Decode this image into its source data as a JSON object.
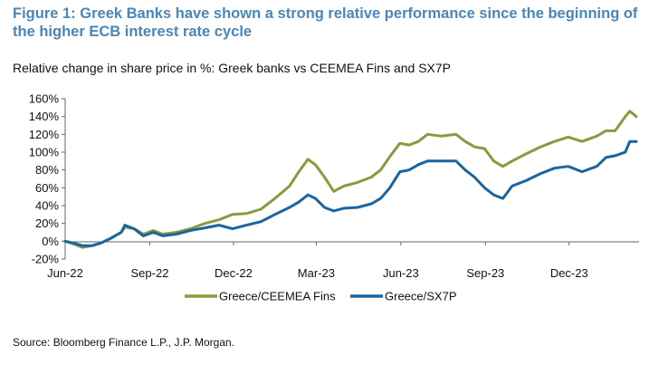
{
  "title": "Figure 1: Greek Banks have shown a strong relative performance since the beginning of the higher ECB interest rate cycle",
  "subtitle": "Relative change in share price in %: Greek banks vs CEEMEA Fins and SX7P",
  "source": "Source: Bloomberg Finance L.P., J.P. Morgan.",
  "chart_data": {
    "type": "line",
    "yticks": [
      "160%",
      "140%",
      "120%",
      "100%",
      "80%",
      "60%",
      "40%",
      "20%",
      "0%",
      "-20%"
    ],
    "ylim": [
      -20,
      160
    ],
    "xticks": [
      "Jun-22",
      "Sep-22",
      "Dec-22",
      "Mar-23",
      "Jun-23",
      "Sep-23",
      "Dec-23"
    ],
    "xlim": [
      "2022-06-01",
      "2024-02-15"
    ],
    "grid": false,
    "legend_position": "bottom",
    "series": [
      {
        "name": "Greece/CEEMEA Fins",
        "color": "#8a9a3c",
        "points": [
          [
            "2022-06-01",
            0
          ],
          [
            "2022-06-10",
            -3
          ],
          [
            "2022-06-20",
            -7
          ],
          [
            "2022-06-30",
            -5
          ],
          [
            "2022-07-10",
            -2
          ],
          [
            "2022-07-20",
            3
          ],
          [
            "2022-08-01",
            10
          ],
          [
            "2022-08-05",
            16
          ],
          [
            "2022-08-15",
            14
          ],
          [
            "2022-08-25",
            8
          ],
          [
            "2022-09-05",
            12
          ],
          [
            "2022-09-15",
            8
          ],
          [
            "2022-09-30",
            10
          ],
          [
            "2022-10-15",
            14
          ],
          [
            "2022-10-31",
            20
          ],
          [
            "2022-11-15",
            24
          ],
          [
            "2022-11-30",
            30
          ],
          [
            "2022-12-15",
            31
          ],
          [
            "2022-12-31",
            36
          ],
          [
            "2023-01-15",
            48
          ],
          [
            "2023-01-31",
            62
          ],
          [
            "2023-02-10",
            78
          ],
          [
            "2023-02-20",
            92
          ],
          [
            "2023-02-28",
            86
          ],
          [
            "2023-03-10",
            72
          ],
          [
            "2023-03-20",
            56
          ],
          [
            "2023-03-31",
            62
          ],
          [
            "2023-04-15",
            66
          ],
          [
            "2023-04-30",
            72
          ],
          [
            "2023-05-10",
            80
          ],
          [
            "2023-05-20",
            95
          ],
          [
            "2023-05-31",
            110
          ],
          [
            "2023-06-10",
            108
          ],
          [
            "2023-06-20",
            112
          ],
          [
            "2023-06-30",
            120
          ],
          [
            "2023-07-15",
            118
          ],
          [
            "2023-07-31",
            120
          ],
          [
            "2023-08-10",
            112
          ],
          [
            "2023-08-20",
            106
          ],
          [
            "2023-08-31",
            104
          ],
          [
            "2023-09-10",
            90
          ],
          [
            "2023-09-20",
            84
          ],
          [
            "2023-09-30",
            90
          ],
          [
            "2023-10-15",
            98
          ],
          [
            "2023-10-31",
            106
          ],
          [
            "2023-11-15",
            112
          ],
          [
            "2023-11-30",
            117
          ],
          [
            "2023-12-15",
            112
          ],
          [
            "2023-12-31",
            118
          ],
          [
            "2024-01-10",
            124
          ],
          [
            "2024-01-20",
            124
          ],
          [
            "2024-01-31",
            140
          ],
          [
            "2024-02-05",
            146
          ],
          [
            "2024-02-12",
            140
          ]
        ]
      },
      {
        "name": "Greece/SX7P",
        "color": "#1a64a0",
        "points": [
          [
            "2022-06-01",
            0
          ],
          [
            "2022-06-10",
            -2
          ],
          [
            "2022-06-20",
            -5
          ],
          [
            "2022-06-30",
            -5
          ],
          [
            "2022-07-10",
            -2
          ],
          [
            "2022-07-20",
            3
          ],
          [
            "2022-08-01",
            10
          ],
          [
            "2022-08-05",
            18
          ],
          [
            "2022-08-15",
            14
          ],
          [
            "2022-08-25",
            6
          ],
          [
            "2022-09-05",
            10
          ],
          [
            "2022-09-15",
            6
          ],
          [
            "2022-09-30",
            8
          ],
          [
            "2022-10-15",
            12
          ],
          [
            "2022-10-31",
            15
          ],
          [
            "2022-11-15",
            18
          ],
          [
            "2022-11-30",
            14
          ],
          [
            "2022-12-15",
            18
          ],
          [
            "2022-12-31",
            22
          ],
          [
            "2023-01-15",
            30
          ],
          [
            "2023-01-31",
            38
          ],
          [
            "2023-02-10",
            44
          ],
          [
            "2023-02-20",
            52
          ],
          [
            "2023-02-28",
            48
          ],
          [
            "2023-03-10",
            38
          ],
          [
            "2023-03-20",
            34
          ],
          [
            "2023-03-31",
            37
          ],
          [
            "2023-04-15",
            38
          ],
          [
            "2023-04-30",
            42
          ],
          [
            "2023-05-10",
            48
          ],
          [
            "2023-05-20",
            60
          ],
          [
            "2023-05-31",
            78
          ],
          [
            "2023-06-10",
            80
          ],
          [
            "2023-06-20",
            86
          ],
          [
            "2023-06-30",
            90
          ],
          [
            "2023-07-15",
            90
          ],
          [
            "2023-07-31",
            90
          ],
          [
            "2023-08-10",
            80
          ],
          [
            "2023-08-20",
            72
          ],
          [
            "2023-08-31",
            60
          ],
          [
            "2023-09-10",
            52
          ],
          [
            "2023-09-20",
            48
          ],
          [
            "2023-09-30",
            62
          ],
          [
            "2023-10-15",
            68
          ],
          [
            "2023-10-31",
            76
          ],
          [
            "2023-11-15",
            82
          ],
          [
            "2023-11-30",
            84
          ],
          [
            "2023-12-15",
            78
          ],
          [
            "2023-12-31",
            84
          ],
          [
            "2024-01-10",
            94
          ],
          [
            "2024-01-20",
            96
          ],
          [
            "2024-01-31",
            100
          ],
          [
            "2024-02-05",
            112
          ],
          [
            "2024-02-12",
            112
          ]
        ]
      }
    ]
  }
}
